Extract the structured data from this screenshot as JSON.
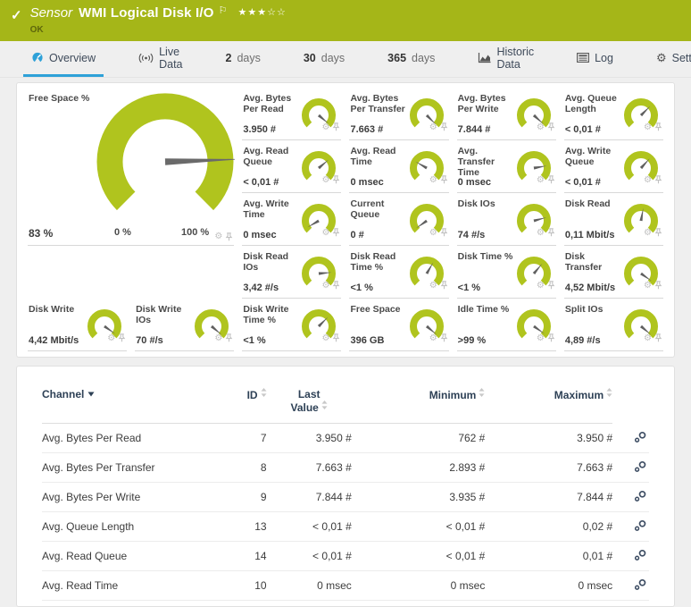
{
  "colors": {
    "header_bg": "#a5b618",
    "gauge_green": "#b0c41e",
    "needle_gray": "#666666",
    "tab_accent_blue": "#2ea1d8",
    "table_header_navy": "#2e4156"
  },
  "header": {
    "check_icon": "check-icon",
    "kind": "Sensor",
    "title": "WMI Logical Disk I/O",
    "flag_icon": "flag-icon",
    "stars": "★★★☆☆",
    "stars_filled": 3,
    "stars_total": 5,
    "status": "OK"
  },
  "tabs": [
    {
      "label": "Overview",
      "icon": "gauge-icon",
      "active": true
    },
    {
      "label": "Live Data",
      "icon": "broadcast-icon",
      "active": false
    },
    {
      "number": "2",
      "label": "days",
      "active": false
    },
    {
      "number": "30",
      "label": "days",
      "active": false
    },
    {
      "number": "365",
      "label": "days",
      "active": false
    },
    {
      "label": "Historic Data",
      "icon": "chart-icon",
      "active": false
    },
    {
      "label": "Log",
      "icon": "log-icon",
      "active": false
    },
    {
      "label": "Settings",
      "icon": "gear-icon",
      "active": false
    }
  ],
  "gauge_panel": {
    "big_gauge": {
      "label": "Free Space %",
      "value": "83 %",
      "scale_min": "0 %",
      "scale_max": "100 %",
      "needle_deg": 358
    },
    "tile_icons": [
      "gear-icon",
      "pin-icon"
    ],
    "gauges": [
      {
        "label": "Avg. Bytes Per Read",
        "value": "3.950 #",
        "needle_deg": 40
      },
      {
        "label": "Avg. Bytes Per Transfer",
        "value": "7.663 #",
        "needle_deg": 45
      },
      {
        "label": "Avg. Bytes Per Write",
        "value": "7.844 #",
        "needle_deg": 42
      },
      {
        "label": "Avg. Queue Length",
        "value": "< 0,01 #",
        "needle_deg": -45
      },
      {
        "label": "Avg. Read Queue",
        "value": "< 0,01 #",
        "needle_deg": -40
      },
      {
        "label": "Avg. Read Time",
        "value": "0 msec",
        "needle_deg": -150
      },
      {
        "label": "Avg. Transfer Time",
        "value": "0 msec",
        "needle_deg": -10
      },
      {
        "label": "Avg. Write Queue",
        "value": "< 0,01 #",
        "needle_deg": -48
      },
      {
        "label": "Avg. Write Time",
        "value": "0 msec",
        "needle_deg": 150
      },
      {
        "label": "Current Queue",
        "value": "0 #",
        "needle_deg": 145
      },
      {
        "label": "Disk IOs",
        "value": "74 #/s",
        "needle_deg": -15
      },
      {
        "label": "Disk Read",
        "value": "0,11 Mbit/s",
        "needle_deg": -80
      },
      {
        "label": "Disk Read IOs",
        "value": "3,42 #/s",
        "needle_deg": -5
      },
      {
        "label": "Disk Read Time %",
        "value": "<1 %",
        "needle_deg": -60
      },
      {
        "label": "Disk Time %",
        "value": "<1 %",
        "needle_deg": -50
      },
      {
        "label": "Disk Transfer",
        "value": "4,52 Mbit/s",
        "needle_deg": 35
      },
      {
        "label": "Disk Write",
        "value": "4,42 Mbit/s",
        "needle_deg": 35
      },
      {
        "label": "Disk Write IOs",
        "value": "70 #/s",
        "needle_deg": 40
      },
      {
        "label": "Disk Write Time %",
        "value": "<1 %",
        "needle_deg": -45
      },
      {
        "label": "Free Space",
        "value": "396 GB",
        "needle_deg": 40
      },
      {
        "label": "Idle Time %",
        "value": ">99 %",
        "needle_deg": 35
      },
      {
        "label": "Split IOs",
        "value": "4,89 #/s",
        "needle_deg": 40
      }
    ]
  },
  "table": {
    "columns": [
      {
        "label": "Channel",
        "sort": "desc-active"
      },
      {
        "label": "ID",
        "sort": "both"
      },
      {
        "label": "Last Value",
        "sort": "both"
      },
      {
        "label": "Minimum",
        "sort": "both"
      },
      {
        "label": "Maximum",
        "sort": "both"
      }
    ],
    "row_action_icon": "edit-channel-gears-icon",
    "rows": [
      {
        "channel": "Avg. Bytes Per Read",
        "id": "7",
        "last": "3.950 #",
        "min": "762 #",
        "max": "3.950 #"
      },
      {
        "channel": "Avg. Bytes Per Transfer",
        "id": "8",
        "last": "7.663 #",
        "min": "2.893 #",
        "max": "7.663 #"
      },
      {
        "channel": "Avg. Bytes Per Write",
        "id": "9",
        "last": "7.844 #",
        "min": "3.935 #",
        "max": "7.844 #"
      },
      {
        "channel": "Avg. Queue Length",
        "id": "13",
        "last": "< 0,01 #",
        "min": "< 0,01 #",
        "max": "0,02 #"
      },
      {
        "channel": "Avg. Read Queue",
        "id": "14",
        "last": "< 0,01 #",
        "min": "< 0,01 #",
        "max": "0,01 #"
      },
      {
        "channel": "Avg. Read Time",
        "id": "10",
        "last": "0 msec",
        "min": "0 msec",
        "max": "0 msec"
      }
    ]
  }
}
